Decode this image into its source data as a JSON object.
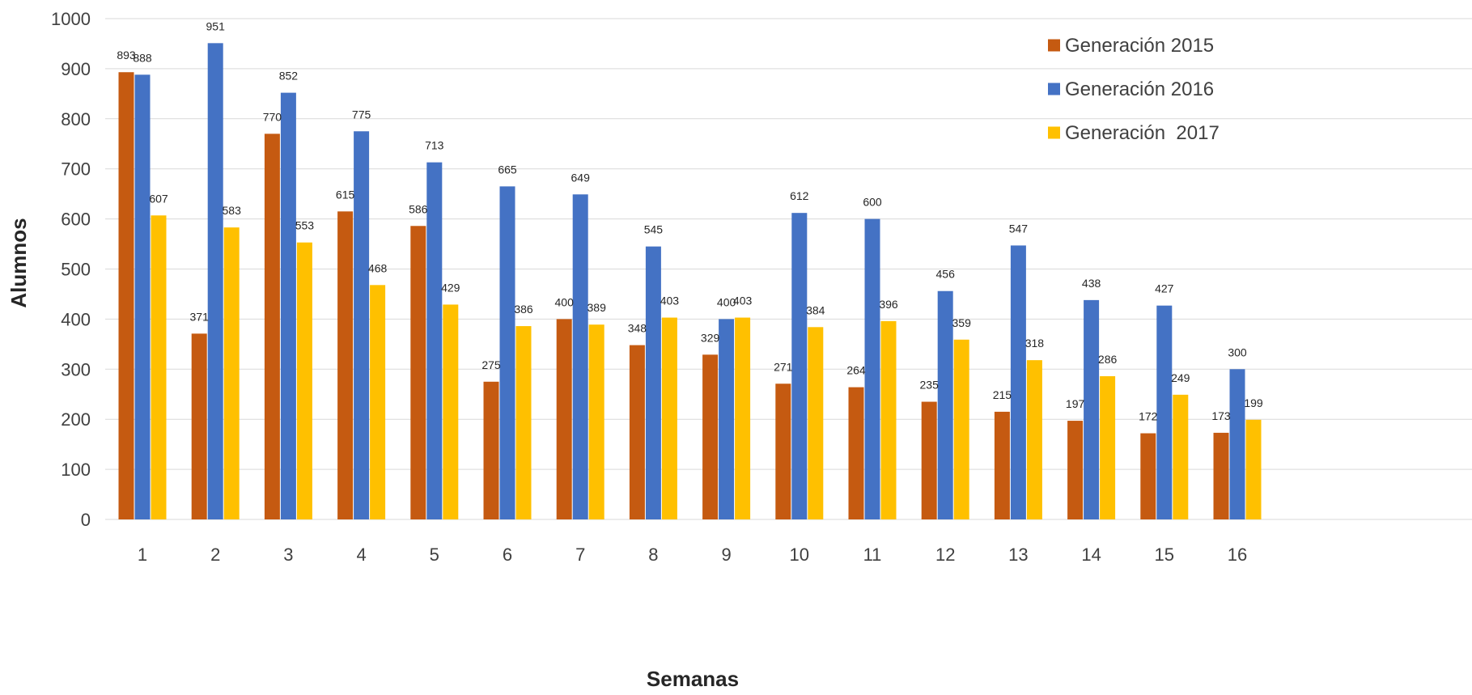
{
  "chart_data": {
    "type": "bar",
    "title": "",
    "xlabel": "Semanas",
    "ylabel": "Alumnos",
    "ylim": [
      0,
      1000
    ],
    "yticks": [
      "0",
      "100",
      "200",
      "300",
      "400",
      "500",
      "600",
      "700",
      "800",
      "900",
      "1000"
    ],
    "categories": [
      "1",
      "2",
      "3",
      "4",
      "5",
      "6",
      "7",
      "8",
      "9",
      "10",
      "11",
      "12",
      "13",
      "14",
      "15",
      "16"
    ],
    "series": [
      {
        "name": "Generación 2015",
        "color": "#C55A11",
        "values": [
          893,
          371,
          770,
          615,
          586,
          275,
          400,
          348,
          329,
          271,
          264,
          235,
          215,
          197,
          172,
          173
        ],
        "labels": [
          "893",
          "371",
          "770",
          "615",
          "586",
          "275",
          "400",
          "348",
          "329",
          "271",
          "264",
          "235",
          "215",
          "197",
          "172",
          "173"
        ]
      },
      {
        "name": "Generación 2016",
        "color": "#4472C4",
        "values": [
          888,
          951,
          852,
          775,
          713,
          665,
          649,
          545,
          400,
          612,
          600,
          456,
          547,
          438,
          427,
          300
        ],
        "labels": [
          "888",
          "951",
          "852",
          "775",
          "713",
          "665",
          "649",
          "545",
          "400",
          "612",
          "600",
          "456",
          "547",
          "438",
          "427",
          "300"
        ]
      },
      {
        "name": "Generación  2017",
        "color": "#FFC000",
        "values": [
          607,
          583,
          553,
          468,
          429,
          386,
          389,
          403,
          403,
          384,
          396,
          359,
          318,
          286,
          249,
          199
        ],
        "labels": [
          "607",
          "583",
          "553",
          "468",
          "429",
          "386",
          "389",
          "403",
          "403",
          "384",
          "396",
          "359",
          "318",
          "286",
          "249",
          "199"
        ]
      }
    ],
    "grid": true,
    "legend_position": "top-right",
    "gridline_color": "#D9D9D9"
  }
}
